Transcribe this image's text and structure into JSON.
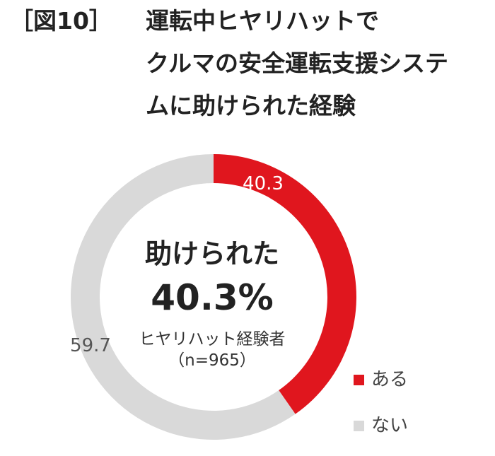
{
  "title": {
    "prefix": "［図10］",
    "line1": "運転中ヒヤリハットで",
    "line2": "クルマの安全運転支援システ",
    "line3": "ムに助けられた経験"
  },
  "chart_data": {
    "type": "pie",
    "subtype": "donut",
    "categories": [
      "ある",
      "ない"
    ],
    "values": [
      40.3,
      59.7
    ],
    "data_labels": [
      "40.3",
      "59.7"
    ],
    "colors": [
      "#e0161e",
      "#d9d9d9"
    ],
    "label_colors": [
      "#ffffff",
      "#555555"
    ],
    "center": {
      "label": "助けられた",
      "value": "40.3%",
      "base": "ヒヤリハット経験者",
      "n": "（n=965）"
    },
    "legend": {
      "position": "bottom-right",
      "entries": [
        "ある",
        "ない"
      ]
    }
  }
}
